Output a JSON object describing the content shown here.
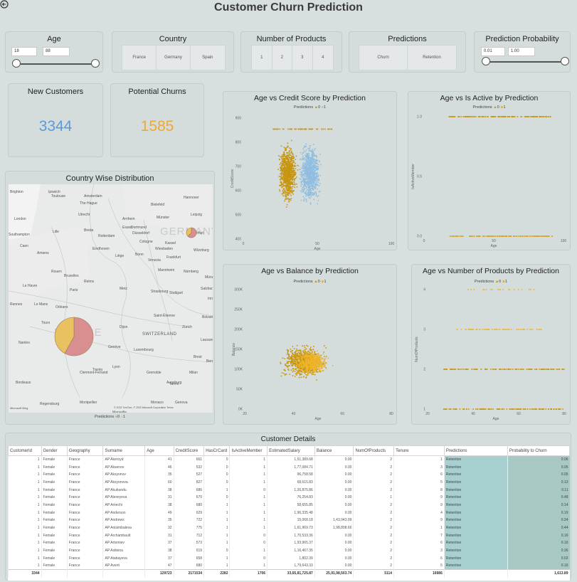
{
  "page": {
    "title": "Customer Churn Prediction"
  },
  "filters": {
    "age": {
      "label": "Age",
      "min": "18",
      "max": "88"
    },
    "country": {
      "label": "Country",
      "options": [
        "France",
        "Germany",
        "Spain"
      ]
    },
    "products": {
      "label": "Number of Products",
      "options": [
        "1",
        "2",
        "3",
        "4"
      ]
    },
    "predictions": {
      "label": "Predictions",
      "options": [
        "Churn",
        "Retention"
      ]
    },
    "probability": {
      "label": "Prediction Probability",
      "min": "0.01",
      "max": "1.00"
    }
  },
  "kpis": {
    "new_customers": {
      "label": "New Customers",
      "value": "3344",
      "color": "#5b9bd5"
    },
    "potential_churns": {
      "label": "Potential Churns",
      "value": "1585",
      "color": "#f0a830"
    }
  },
  "map": {
    "title": "Country Wise Distribution",
    "watermark_germany": "GERMANY",
    "watermark_france": "FRANCE",
    "watermark_switzerland": "SWITZERLAND",
    "legend_label": "Predictions",
    "legend_items": [
      "0",
      "1"
    ],
    "attribution": "© 2023 TomTom, © 2023 Microsoft Corporation  Terms",
    "bing": "Microsoft Bing",
    "cities": [
      "Brighton",
      "Ipswich",
      "London",
      "Amsterdam",
      "Utrecht",
      "The Hague",
      "Rotterdam",
      "Breda",
      "Arnhem",
      "Münster",
      "Eindhoven",
      "Dortmund",
      "Bielefeld",
      "Hannover",
      "Essen",
      "Düsseldorf",
      "Kassel",
      "Leipzig",
      "Cologne",
      "Bruxelles",
      "Liège",
      "Erfurt",
      "Lille",
      "Bonn",
      "Southampton",
      "Le Havre",
      "Amiens",
      "Wiesbaden",
      "Frankfurt",
      "Würzburg",
      "Reims",
      "Nürnberg",
      "Rouen",
      "Mannheim",
      "Rennes",
      "Paris",
      "Metz",
      "Le Mans",
      "Stuttgart",
      "Strasbourg",
      "Nantes",
      "Orléans",
      "Tours",
      "Dijon",
      "Zürich",
      "Genève",
      "Lyon",
      "Clermont-Ferrand",
      "Grenoble",
      "Bordeaux",
      "Montpellier",
      "Marseille",
      "Monaco",
      "Milan",
      "Torino",
      "Genova",
      "Trento",
      "Venezia",
      "Saint-Étienne",
      "Luxembourg",
      "Bern",
      "Lausanne",
      "Bolzano",
      "Innsbruck",
      "Salzburg",
      "München",
      "Augsburg",
      "Regensburg",
      "Toulouse",
      "Caen",
      "Brest"
    ],
    "pies": [
      {
        "country": "France",
        "shares": [
          0.58,
          0.42
        ]
      },
      {
        "country": "Germany",
        "shares": [
          0.62,
          0.38
        ]
      }
    ],
    "colors": [
      "#d98f8f",
      "#e9c160"
    ]
  },
  "charts": {
    "credit": {
      "title": "Age vs Credit Score by Prediction",
      "legend": "Predictions",
      "legend_items": [
        "0",
        "1"
      ],
      "xlabel": "Age",
      "ylabel": "CreditScore"
    },
    "active": {
      "title": "Age vs Is Active by Prediction",
      "legend": "Predictions",
      "legend_items": [
        "0",
        "1"
      ],
      "xlabel": "Age",
      "ylabel": "IsActiveMember"
    },
    "balance": {
      "title": "Age vs Balance by Prediction",
      "legend": "Predictions",
      "legend_items": [
        "0",
        "1"
      ],
      "xlabel": "Age",
      "ylabel": "Balance"
    },
    "products": {
      "title": "Age vs  Number of Products by Prediction",
      "legend": "Predictions",
      "legend_items": [
        "0",
        "1"
      ],
      "xlabel": "Age",
      "ylabel": "NumOfProducts"
    }
  },
  "chart_data": [
    {
      "type": "scatter",
      "title": "Age vs Credit Score by Prediction",
      "xlabel": "Age",
      "ylabel": "CreditScore",
      "xlim": [
        0,
        100
      ],
      "ylim": [
        350,
        900
      ],
      "xticks": [
        "0",
        "50",
        "100"
      ],
      "yticks": [
        "400",
        "500",
        "600",
        "700",
        "800",
        "900"
      ],
      "series": [
        {
          "name": "0",
          "color": "#c7960f",
          "x_range": [
            18,
            60
          ],
          "y_range": [
            400,
            850
          ]
        },
        {
          "name": "1",
          "color": "#8fbde0",
          "x_range": [
            25,
            85
          ],
          "y_range": [
            350,
            850
          ]
        }
      ]
    },
    {
      "type": "scatter",
      "title": "Age vs Is Active by Prediction",
      "xlabel": "Age",
      "ylabel": "IsActiveMember",
      "xlim": [
        0,
        100
      ],
      "ylim": [
        0,
        1
      ],
      "xticks": [
        "0",
        "50",
        "100"
      ],
      "yticks": [
        "0.0",
        "0.5",
        "1.0"
      ],
      "series": [
        {
          "name": "0",
          "color": "#c7960f",
          "x_range": [
            18,
            92
          ],
          "y_values": [
            0,
            1
          ]
        },
        {
          "name": "1",
          "color": "#f0b429",
          "x_range": [
            18,
            92
          ],
          "y_values": [
            0,
            1
          ]
        }
      ]
    },
    {
      "type": "scatter",
      "title": "Age vs Balance by Prediction",
      "xlabel": "Age",
      "ylabel": "Balance",
      "xlim": [
        10,
        80
      ],
      "ylim": [
        0,
        300000
      ],
      "xticks": [
        "20",
        "40",
        "60",
        "80"
      ],
      "yticks": [
        "0K",
        "50K",
        "100K",
        "150K",
        "200K",
        "250K",
        "300K"
      ],
      "series": [
        {
          "name": "0",
          "color": "#c7960f",
          "x_range": [
            18,
            75
          ],
          "y_range": [
            40000,
            210000
          ]
        },
        {
          "name": "1",
          "color": "#f0b429",
          "x_range": [
            20,
            70
          ],
          "y_range": [
            60000,
            180000
          ]
        }
      ]
    },
    {
      "type": "scatter",
      "title": "Age vs  Number of Products by Prediction",
      "xlabel": "Age",
      "ylabel": "NumOfProducts",
      "xlim": [
        10,
        80
      ],
      "ylim": [
        1,
        4
      ],
      "xticks": [
        "20",
        "40",
        "60",
        "80"
      ],
      "yticks": [
        "1",
        "2",
        "3",
        "4"
      ],
      "series": [
        {
          "name": "0",
          "color": "#c7960f",
          "x_range": [
            18,
            80
          ],
          "y_values": [
            1,
            2,
            3,
            4
          ]
        },
        {
          "name": "1",
          "color": "#f0b429",
          "x_range": [
            18,
            80
          ],
          "y_values": [
            1,
            2,
            3,
            4
          ]
        }
      ]
    }
  ],
  "table": {
    "title": "Customer Details",
    "columns": [
      "CustomerId",
      "Gender",
      "Geography",
      "Surname",
      "Age",
      "CreditScore",
      "HasCrCard",
      "IsActiveMember",
      "EstimatedSalary",
      "Balance",
      "NumOfProducts",
      "Tenure",
      "Predictions",
      "Probability to Churn"
    ],
    "rows": [
      [
        "1",
        "Female",
        "France",
        "AP Akeroyd",
        "41",
        "661",
        "0",
        "1",
        "1,51,389.68",
        "0.00",
        "2",
        "1",
        "Retention",
        "0.06"
      ],
      [
        "1",
        "Female",
        "France",
        "AP Aksenov",
        "46",
        "532",
        "0",
        "1",
        "1,77,084.71",
        "0.00",
        "2",
        "3",
        "Retention",
        "0.05"
      ],
      [
        "1",
        "Female",
        "France",
        "AP Aksyonov",
        "35",
        "527",
        "0",
        "1",
        "96,758.58",
        "0.00",
        "2",
        "6",
        "Retention",
        "0.05"
      ],
      [
        "1",
        "Female",
        "France",
        "AP Aksyonova",
        "60",
        "827",
        "0",
        "1",
        "68,615.83",
        "0.00",
        "2",
        "5",
        "Retention",
        "0.13"
      ],
      [
        "1",
        "Female",
        "France",
        "AP Akubundu",
        "38",
        "686",
        "1",
        "0",
        "1,26,875.86",
        "0.00",
        "2",
        "8",
        "Retention",
        "0.11"
      ],
      [
        "1",
        "Female",
        "France",
        "AP Alexeyeva",
        "31",
        "670",
        "0",
        "1",
        "76,254.83",
        "0.00",
        "1",
        "9",
        "Retention",
        "0.48"
      ],
      [
        "1",
        "Female",
        "France",
        "AP Amechi",
        "38",
        "680",
        "1",
        "1",
        "58,655.85",
        "0.00",
        "2",
        "9",
        "Retention",
        "0.14"
      ],
      [
        "1",
        "Female",
        "France",
        "AP Anderson",
        "49",
        "629",
        "1",
        "1",
        "1,96,335.48",
        "0.00",
        "2",
        "4",
        "Retention",
        "0.19"
      ],
      [
        "1",
        "Female",
        "France",
        "AP Andrews",
        "35",
        "722",
        "1",
        "1",
        "15,068.18",
        "1,43,943.99",
        "2",
        "9",
        "Retention",
        "0.34"
      ],
      [
        "1",
        "Female",
        "France",
        "AP Anisimbaleva",
        "32",
        "775",
        "1",
        "1",
        "1,61,969.73",
        "1,98,898.66",
        "2",
        "1",
        "Retention",
        "0.44"
      ],
      [
        "1",
        "Female",
        "France",
        "AP Archambault",
        "31",
        "712",
        "1",
        "0",
        "1,70,533.36",
        "0.00",
        "2",
        "7",
        "Retention",
        "0.16"
      ],
      [
        "1",
        "Female",
        "France",
        "AP Artemiev",
        "37",
        "573",
        "1",
        "0",
        "1,93,965.37",
        "0.00",
        "2",
        "6",
        "Retention",
        "0.16"
      ],
      [
        "1",
        "Female",
        "France",
        "AP Astleina",
        "38",
        "619",
        "0",
        "1",
        "1,16,467.35",
        "0.00",
        "2",
        "3",
        "Retention",
        "0.36"
      ],
      [
        "1",
        "Female",
        "France",
        "AP Atabayeva",
        "37",
        "658",
        "1",
        "0",
        "1,802.39",
        "0.00",
        "2",
        "6",
        "Retention",
        "0.02"
      ],
      [
        "1",
        "Female",
        "France",
        "AP Avent",
        "47",
        "680",
        "1",
        "1",
        "1,79,643.33",
        "0.00",
        "2",
        "5",
        "Retention",
        "0.16"
      ]
    ],
    "totals": [
      "3344",
      "",
      "",
      "",
      "129723",
      "2171534",
      "2282",
      "1706",
      "33,65,81,725.87",
      "25,91,98,503.74",
      "5114",
      "16986",
      "",
      "1,613.89"
    ]
  }
}
